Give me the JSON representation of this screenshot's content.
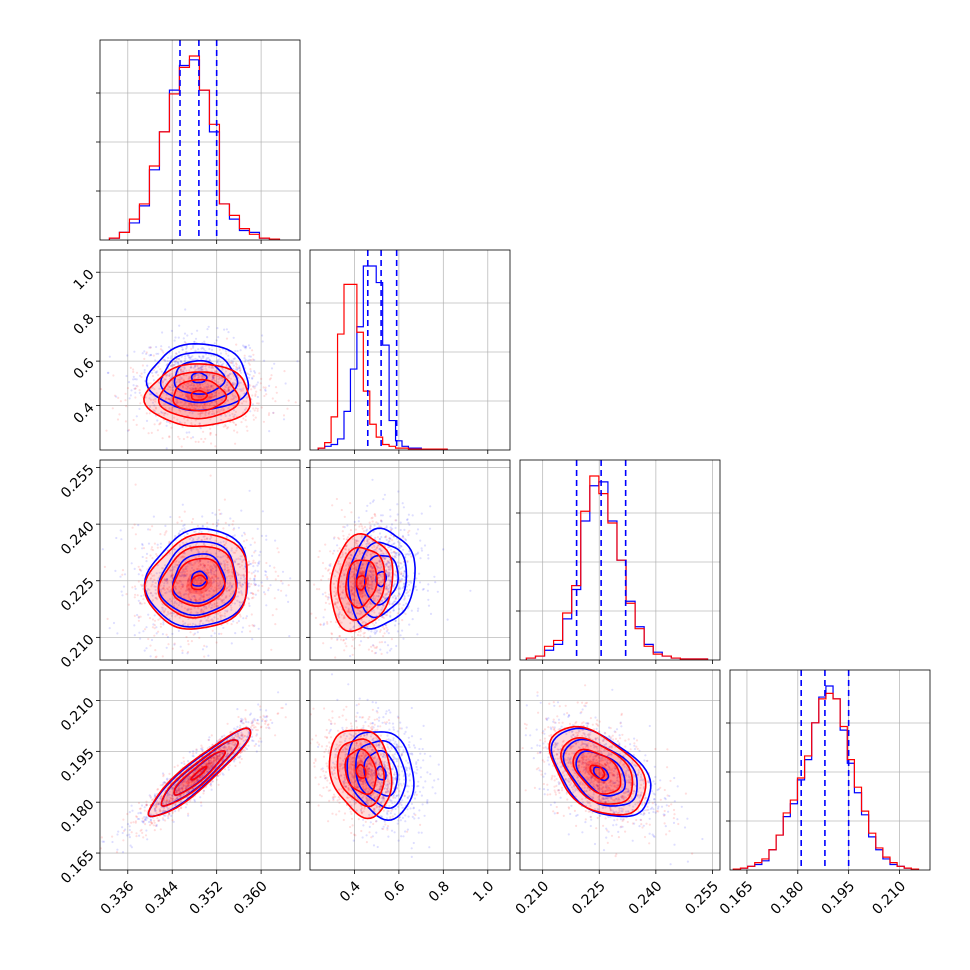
{
  "chart_data": {
    "type": "scatter",
    "title": "",
    "colors": {
      "blue": "#0000ff",
      "red": "#ff0000"
    },
    "grid": true,
    "series": [
      {
        "color": "#0000ff",
        "marginal_quantiles": [
          [
            0.3454,
            0.3488,
            0.352
          ],
          [
            0.46,
            0.52,
            0.59
          ],
          [
            0.219,
            0.2255,
            0.232
          ],
          [
            0.181,
            0.188,
            0.195
          ]
        ]
      },
      {
        "color": "#ff0000"
      }
    ],
    "params": [
      {
        "range": [
          0.331,
          0.367
        ],
        "ticks": [
          "0.336",
          "0.344",
          "0.352",
          "0.360"
        ],
        "tick_values": [
          0.336,
          0.344,
          0.352,
          0.36
        ]
      },
      {
        "range": [
          0.2,
          1.1
        ],
        "ticks": [
          "0.4",
          "0.6",
          "0.8",
          "1.0"
        ],
        "tick_values": [
          0.4,
          0.6,
          0.8,
          1.0
        ]
      },
      {
        "range": [
          0.204,
          0.257
        ],
        "ticks": [
          "0.210",
          "0.225",
          "0.240",
          "0.255"
        ],
        "tick_values": [
          0.21,
          0.225,
          0.24,
          0.255
        ]
      },
      {
        "range": [
          0.16,
          0.219
        ],
        "ticks": [
          "0.165",
          "0.180",
          "0.195",
          "0.210"
        ],
        "tick_values": [
          0.165,
          0.18,
          0.195,
          0.21
        ]
      }
    ],
    "histograms": [
      {
        "bins": [
          0.3327,
          0.3345,
          0.3363,
          0.3381,
          0.3399,
          0.3417,
          0.3435,
          0.3453,
          0.3471,
          0.3489,
          0.3507,
          0.3525,
          0.3543,
          0.3561,
          0.3579,
          0.3597,
          0.3615,
          0.3633
        ],
        "blue": [
          0.01,
          0.04,
          0.09,
          0.18,
          0.37,
          0.57,
          0.79,
          0.92,
          0.95,
          0.79,
          0.57,
          0.19,
          0.11,
          0.05,
          0.04,
          0.01,
          0.005
        ],
        "red": [
          0.01,
          0.04,
          0.11,
          0.19,
          0.39,
          0.57,
          0.77,
          0.91,
          0.97,
          0.79,
          0.61,
          0.19,
          0.13,
          0.06,
          0.03,
          0.01,
          0.005
        ]
      },
      {
        "bins": [
          0.237,
          0.266,
          0.295,
          0.324,
          0.353,
          0.382,
          0.411,
          0.44,
          0.469,
          0.498,
          0.527,
          0.556,
          0.585,
          0.614,
          0.643,
          0.672,
          0.701,
          0.73,
          0.759,
          0.788,
          0.817
        ],
        "blue": [
          0.01,
          0.02,
          0.03,
          0.06,
          0.21,
          0.44,
          0.67,
          1.0,
          1.0,
          0.91,
          0.57,
          0.16,
          0.05,
          0.02,
          0.01,
          0.01,
          0.005,
          0.005,
          0.005,
          0.005
        ],
        "red": [
          0.01,
          0.04,
          0.18,
          0.63,
          0.9,
          0.9,
          0.64,
          0.32,
          0.14,
          0.07,
          0.03,
          0.02,
          0.01,
          0.01,
          0.005,
          0.005,
          0.005,
          0.005,
          0.005,
          0.005
        ]
      },
      {
        "bins": [
          0.2057,
          0.2081,
          0.2105,
          0.2129,
          0.2153,
          0.2177,
          0.2201,
          0.2225,
          0.2249,
          0.2273,
          0.2297,
          0.2321,
          0.2345,
          0.2369,
          0.2393,
          0.2417,
          0.2441,
          0.2465,
          0.2489,
          0.2513,
          0.2537
        ],
        "blue": [
          0.01,
          0.02,
          0.05,
          0.08,
          0.21,
          0.36,
          0.71,
          0.89,
          0.91,
          0.71,
          0.51,
          0.3,
          0.17,
          0.08,
          0.04,
          0.02,
          0.01,
          0.005,
          0.005,
          0.005
        ],
        "red": [
          0.01,
          0.02,
          0.07,
          0.1,
          0.24,
          0.38,
          0.76,
          0.94,
          0.85,
          0.7,
          0.51,
          0.29,
          0.16,
          0.07,
          0.03,
          0.02,
          0.01,
          0.005,
          0.005,
          0.005
        ]
      },
      {
        "bins": [
          0.161,
          0.1631,
          0.1652,
          0.1673,
          0.1694,
          0.1715,
          0.1736,
          0.1757,
          0.1778,
          0.1799,
          0.182,
          0.1841,
          0.1862,
          0.1883,
          0.1904,
          0.1925,
          0.1946,
          0.1967,
          0.1988,
          0.2009,
          0.203,
          0.2051,
          0.2072,
          0.2093,
          0.2114,
          0.2135,
          0.2156
        ],
        "blue": [
          0.005,
          0.01,
          0.02,
          0.03,
          0.05,
          0.11,
          0.19,
          0.29,
          0.36,
          0.49,
          0.6,
          0.8,
          0.94,
          1.0,
          0.93,
          0.76,
          0.58,
          0.42,
          0.3,
          0.18,
          0.11,
          0.06,
          0.03,
          0.02,
          0.01,
          0.005
        ],
        "red": [
          0.005,
          0.01,
          0.02,
          0.04,
          0.06,
          0.11,
          0.19,
          0.31,
          0.38,
          0.5,
          0.62,
          0.8,
          0.93,
          0.96,
          0.93,
          0.78,
          0.6,
          0.45,
          0.32,
          0.2,
          0.12,
          0.07,
          0.04,
          0.02,
          0.01,
          0.005
        ]
      }
    ],
    "contours": [
      {
        "pair": [
          1,
          0
        ],
        "blue": {
          "center": [
            0.3488,
            0.525
          ],
          "sigma": [
            0.0045,
            0.075
          ],
          "rho": 0.0
        },
        "red": {
          "center": [
            0.3488,
            0.445
          ],
          "sigma": [
            0.0047,
            0.07
          ],
          "rho": 0.02
        }
      },
      {
        "pair": [
          2,
          0
        ],
        "blue": {
          "center": [
            0.3488,
            0.2255
          ],
          "sigma": [
            0.0046,
            0.0065
          ],
          "rho": 0.1
        },
        "red": {
          "center": [
            0.3488,
            0.2245
          ],
          "sigma": [
            0.0046,
            0.0063
          ],
          "rho": 0.12
        }
      },
      {
        "pair": [
          2,
          1
        ],
        "blue": {
          "center": [
            0.52,
            0.2255
          ],
          "sigma": [
            0.075,
            0.0065
          ],
          "rho": 0.12
        },
        "red": {
          "center": [
            0.43,
            0.2245
          ],
          "sigma": [
            0.07,
            0.0063
          ],
          "rho": 0.15
        }
      },
      {
        "pair": [
          3,
          0
        ],
        "blue": {
          "center": [
            0.3488,
            0.1885
          ],
          "sigma": [
            0.0046,
            0.0065
          ],
          "rho": 0.93
        },
        "red": {
          "center": [
            0.3488,
            0.1885
          ],
          "sigma": [
            0.0046,
            0.0065
          ],
          "rho": 0.92
        }
      },
      {
        "pair": [
          3,
          1
        ],
        "blue": {
          "center": [
            0.52,
            0.1885
          ],
          "sigma": [
            0.075,
            0.0065
          ],
          "rho": -0.2
        },
        "red": {
          "center": [
            0.43,
            0.189
          ],
          "sigma": [
            0.07,
            0.0065
          ],
          "rho": -0.2
        }
      },
      {
        "pair": [
          3,
          2
        ],
        "blue": {
          "center": [
            0.2255,
            0.1885
          ],
          "sigma": [
            0.0065,
            0.0065
          ],
          "rho": -0.45
        },
        "red": {
          "center": [
            0.2245,
            0.189
          ],
          "sigma": [
            0.0063,
            0.0065
          ],
          "rho": -0.45
        }
      }
    ],
    "contour_levels": [
      0.5,
      1.0,
      1.5,
      2.0
    ]
  }
}
